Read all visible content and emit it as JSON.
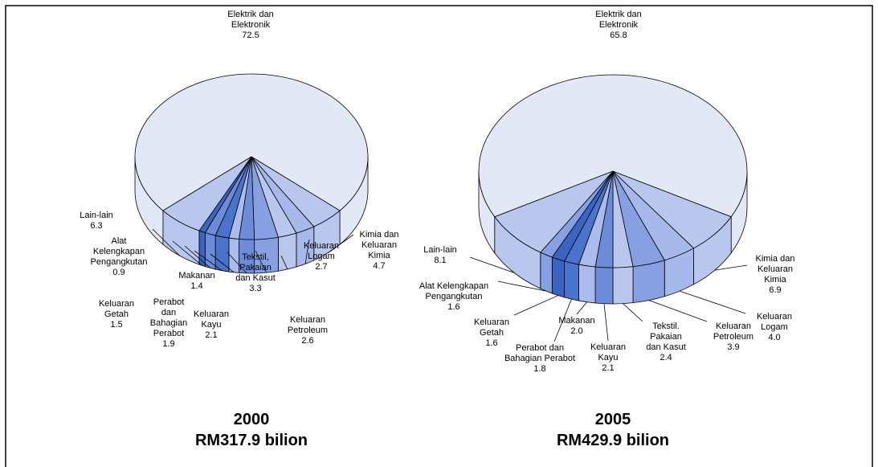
{
  "chart_data": [
    {
      "type": "pie3d",
      "title": "2000",
      "subtitle": "RM317.9 bilion",
      "categories": [
        "Elektrik dan Elektronik",
        "Kimia dan Keluaran Kimia",
        "Keluaran Logam",
        "Keluaran Petroleum",
        "Tekstil, Pakaian dan Kasut",
        "Keluaran Kayu",
        "Makanan",
        "Perabot dan Bahagian Perabot",
        "Keluaran Getah",
        "Alat Kelengkapan Pengangkutan",
        "Lain-lain"
      ],
      "values": [
        72.5,
        4.7,
        2.7,
        2.6,
        3.3,
        2.1,
        1.4,
        1.9,
        1.5,
        0.9,
        6.3
      ],
      "value_labels": [
        "72.5",
        "4.7",
        "2.7",
        "2.6",
        "3.3",
        "2.1",
        "1.4",
        "1.9",
        "1.5",
        "0.9",
        "6.3"
      ],
      "colors": [
        "#e3e8f7",
        "#b9c7ef",
        "#a7b9eb",
        "#b9c7ef",
        "#86a0e2",
        "#6c8cd9",
        "#aabbec",
        "#4a74cc",
        "#6c8cd9",
        "#3a63c2",
        "#b9c7ef"
      ]
    },
    {
      "type": "pie3d",
      "title": "2005",
      "subtitle": "RM429.9 bilion",
      "categories": [
        "Elektrik dan Elektronik",
        "Kimia dan Keluaran Kimia",
        "Keluaran Logam",
        "Keluaran Petroleum",
        "Tekstil. Pakaian dan Kasut",
        "Keluaran Kayu",
        "Makanan",
        "Perabot dan Bahagian Perabot",
        "Keluaran Getah",
        "Alat Kelengkapan Pengangkutan",
        "Lain-lain"
      ],
      "values": [
        65.8,
        6.9,
        4.0,
        3.9,
        2.4,
        2.1,
        2.0,
        1.8,
        1.6,
        1.6,
        8.1
      ],
      "value_labels": [
        "65.8",
        "6.9",
        "4.0",
        "3.9",
        "2.4",
        "2.1",
        "2.0",
        "1.8",
        "1.6",
        "1.6",
        "8.1"
      ],
      "colors": [
        "#e3e8f7",
        "#b9c7ef",
        "#a7b9eb",
        "#86a0e2",
        "#b9c7ef",
        "#6c8cd9",
        "#aabbec",
        "#4a74cc",
        "#3a63c2",
        "#86a0e2",
        "#b9c7ef"
      ]
    }
  ]
}
